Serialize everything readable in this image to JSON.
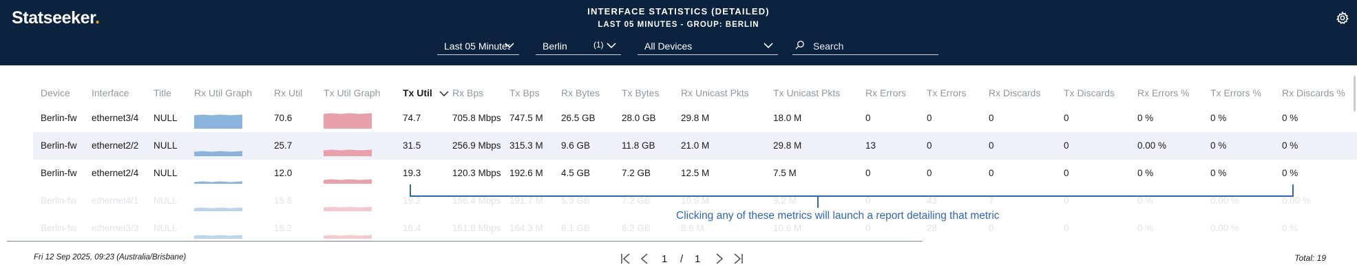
{
  "app": {
    "logo_text": "Statseeker",
    "logo_dot": ".",
    "title": "INTERFACE STATISTICS (DETAILED)",
    "subtitle": "LAST 05 MINUTES - GROUP: BERLIN"
  },
  "filters": {
    "time_range": "Last 05 Minutes",
    "group": "Berlin",
    "group_count": "(1)",
    "devices": "All Devices",
    "search_placeholder": "Search"
  },
  "table": {
    "columns": [
      "Device",
      "Interface",
      "Title",
      "Rx Util Graph",
      "Rx Util",
      "Tx Util Graph",
      "Tx Util",
      "Rx Bps",
      "Tx Bps",
      "Rx Bytes",
      "Tx Bytes",
      "Rx Unicast Pkts",
      "Tx Unicast Pkts",
      "Rx Errors",
      "Tx Errors",
      "Rx Discards",
      "Tx Discards",
      "Rx Errors %",
      "Tx Errors %",
      "Rx Discards %"
    ],
    "sorted_column": "Tx Util",
    "rows": [
      {
        "device": "Berlin-fw",
        "interface": "ethernet3/4",
        "title": "NULL",
        "rx_util": "70.6",
        "tx_util": "74.7",
        "rx_bps": "705.8 Mbps",
        "tx_bps": "747.5 M",
        "rx_bytes": "26.5 GB",
        "tx_bytes": "28.0 GB",
        "rx_ucast": "29.8 M",
        "tx_ucast": "18.0 M",
        "rx_err": "0",
        "tx_err": "0",
        "rx_disc": "0",
        "tx_disc": "0",
        "rx_err_pct": "0 %",
        "tx_err_pct": "0 %",
        "rx_disc_pct": "0 %"
      },
      {
        "device": "Berlin-fw",
        "interface": "ethernet2/2",
        "title": "NULL",
        "rx_util": "25.7",
        "tx_util": "31.5",
        "rx_bps": "256.9 Mbps",
        "tx_bps": "315.3 M",
        "rx_bytes": "9.6 GB",
        "tx_bytes": "11.8 GB",
        "rx_ucast": "21.0 M",
        "tx_ucast": "29.8 M",
        "rx_err": "13",
        "tx_err": "0",
        "rx_disc": "0",
        "tx_disc": "0",
        "rx_err_pct": "0.00 %",
        "tx_err_pct": "0 %",
        "rx_disc_pct": "0 %"
      },
      {
        "device": "Berlin-fw",
        "interface": "ethernet2/4",
        "title": "NULL",
        "rx_util": "12.0",
        "tx_util": "19.3",
        "rx_bps": "120.3 Mbps",
        "tx_bps": "192.6 M",
        "rx_bytes": "4.5 GB",
        "tx_bytes": "7.2 GB",
        "rx_ucast": "12.5 M",
        "tx_ucast": "7.5 M",
        "rx_err": "0",
        "tx_err": "0",
        "rx_disc": "0",
        "tx_disc": "0",
        "rx_err_pct": "0 %",
        "tx_err_pct": "0 %",
        "rx_disc_pct": "0 %"
      },
      {
        "device": "Berlin-fw",
        "interface": "ethernet4/1",
        "title": "NULL",
        "rx_util": "15.6",
        "tx_util": "19.2",
        "rx_bps": "156.4 Mbps",
        "tx_bps": "191.7 M",
        "rx_bytes": "5.9 GB",
        "tx_bytes": "7.2 GB",
        "rx_ucast": "10.9 M",
        "tx_ucast": "9.2 M",
        "rx_err": "0",
        "tx_err": "43",
        "rx_disc": "7",
        "tx_disc": "0",
        "rx_err_pct": "0 %",
        "tx_err_pct": "0.00 %",
        "rx_disc_pct": "0.00 %"
      },
      {
        "device": "Berlin-fw",
        "interface": "ethernet3/3",
        "title": "NULL",
        "rx_util": "16.2",
        "tx_util": "16.4",
        "rx_bps": "161.8 Mbps",
        "tx_bps": "164.3 M",
        "rx_bytes": "6.1 GB",
        "tx_bytes": "6.2 GB",
        "rx_ucast": "8.6 M",
        "tx_ucast": "10.6 M",
        "rx_err": "0",
        "tx_err": "28",
        "rx_disc": "0",
        "tx_disc": "0",
        "rx_err_pct": "0 %",
        "tx_err_pct": "0.00 %",
        "rx_disc_pct": "0 %"
      }
    ]
  },
  "annotation": "Clicking any of these metrics will launch a report detailing that metric",
  "footer": {
    "timestamp": "Fri 12 Sep 2025, 09:23 (Australia/Brisbane)",
    "page_current": "1",
    "page_sep": "/",
    "page_total": "1",
    "total": "Total: 19"
  },
  "colors": {
    "header_bg": "#0c2340",
    "rx_graph": "#8ab4db",
    "tx_graph": "#e8a0ab",
    "annotation": "#2f66b3",
    "alt_row": "#eef2f8"
  },
  "icons": [
    "gear-icon",
    "chevron-down-icon",
    "search-icon",
    "sort-desc-icon",
    "first-page-icon",
    "prev-page-icon",
    "next-page-icon",
    "last-page-icon"
  ]
}
